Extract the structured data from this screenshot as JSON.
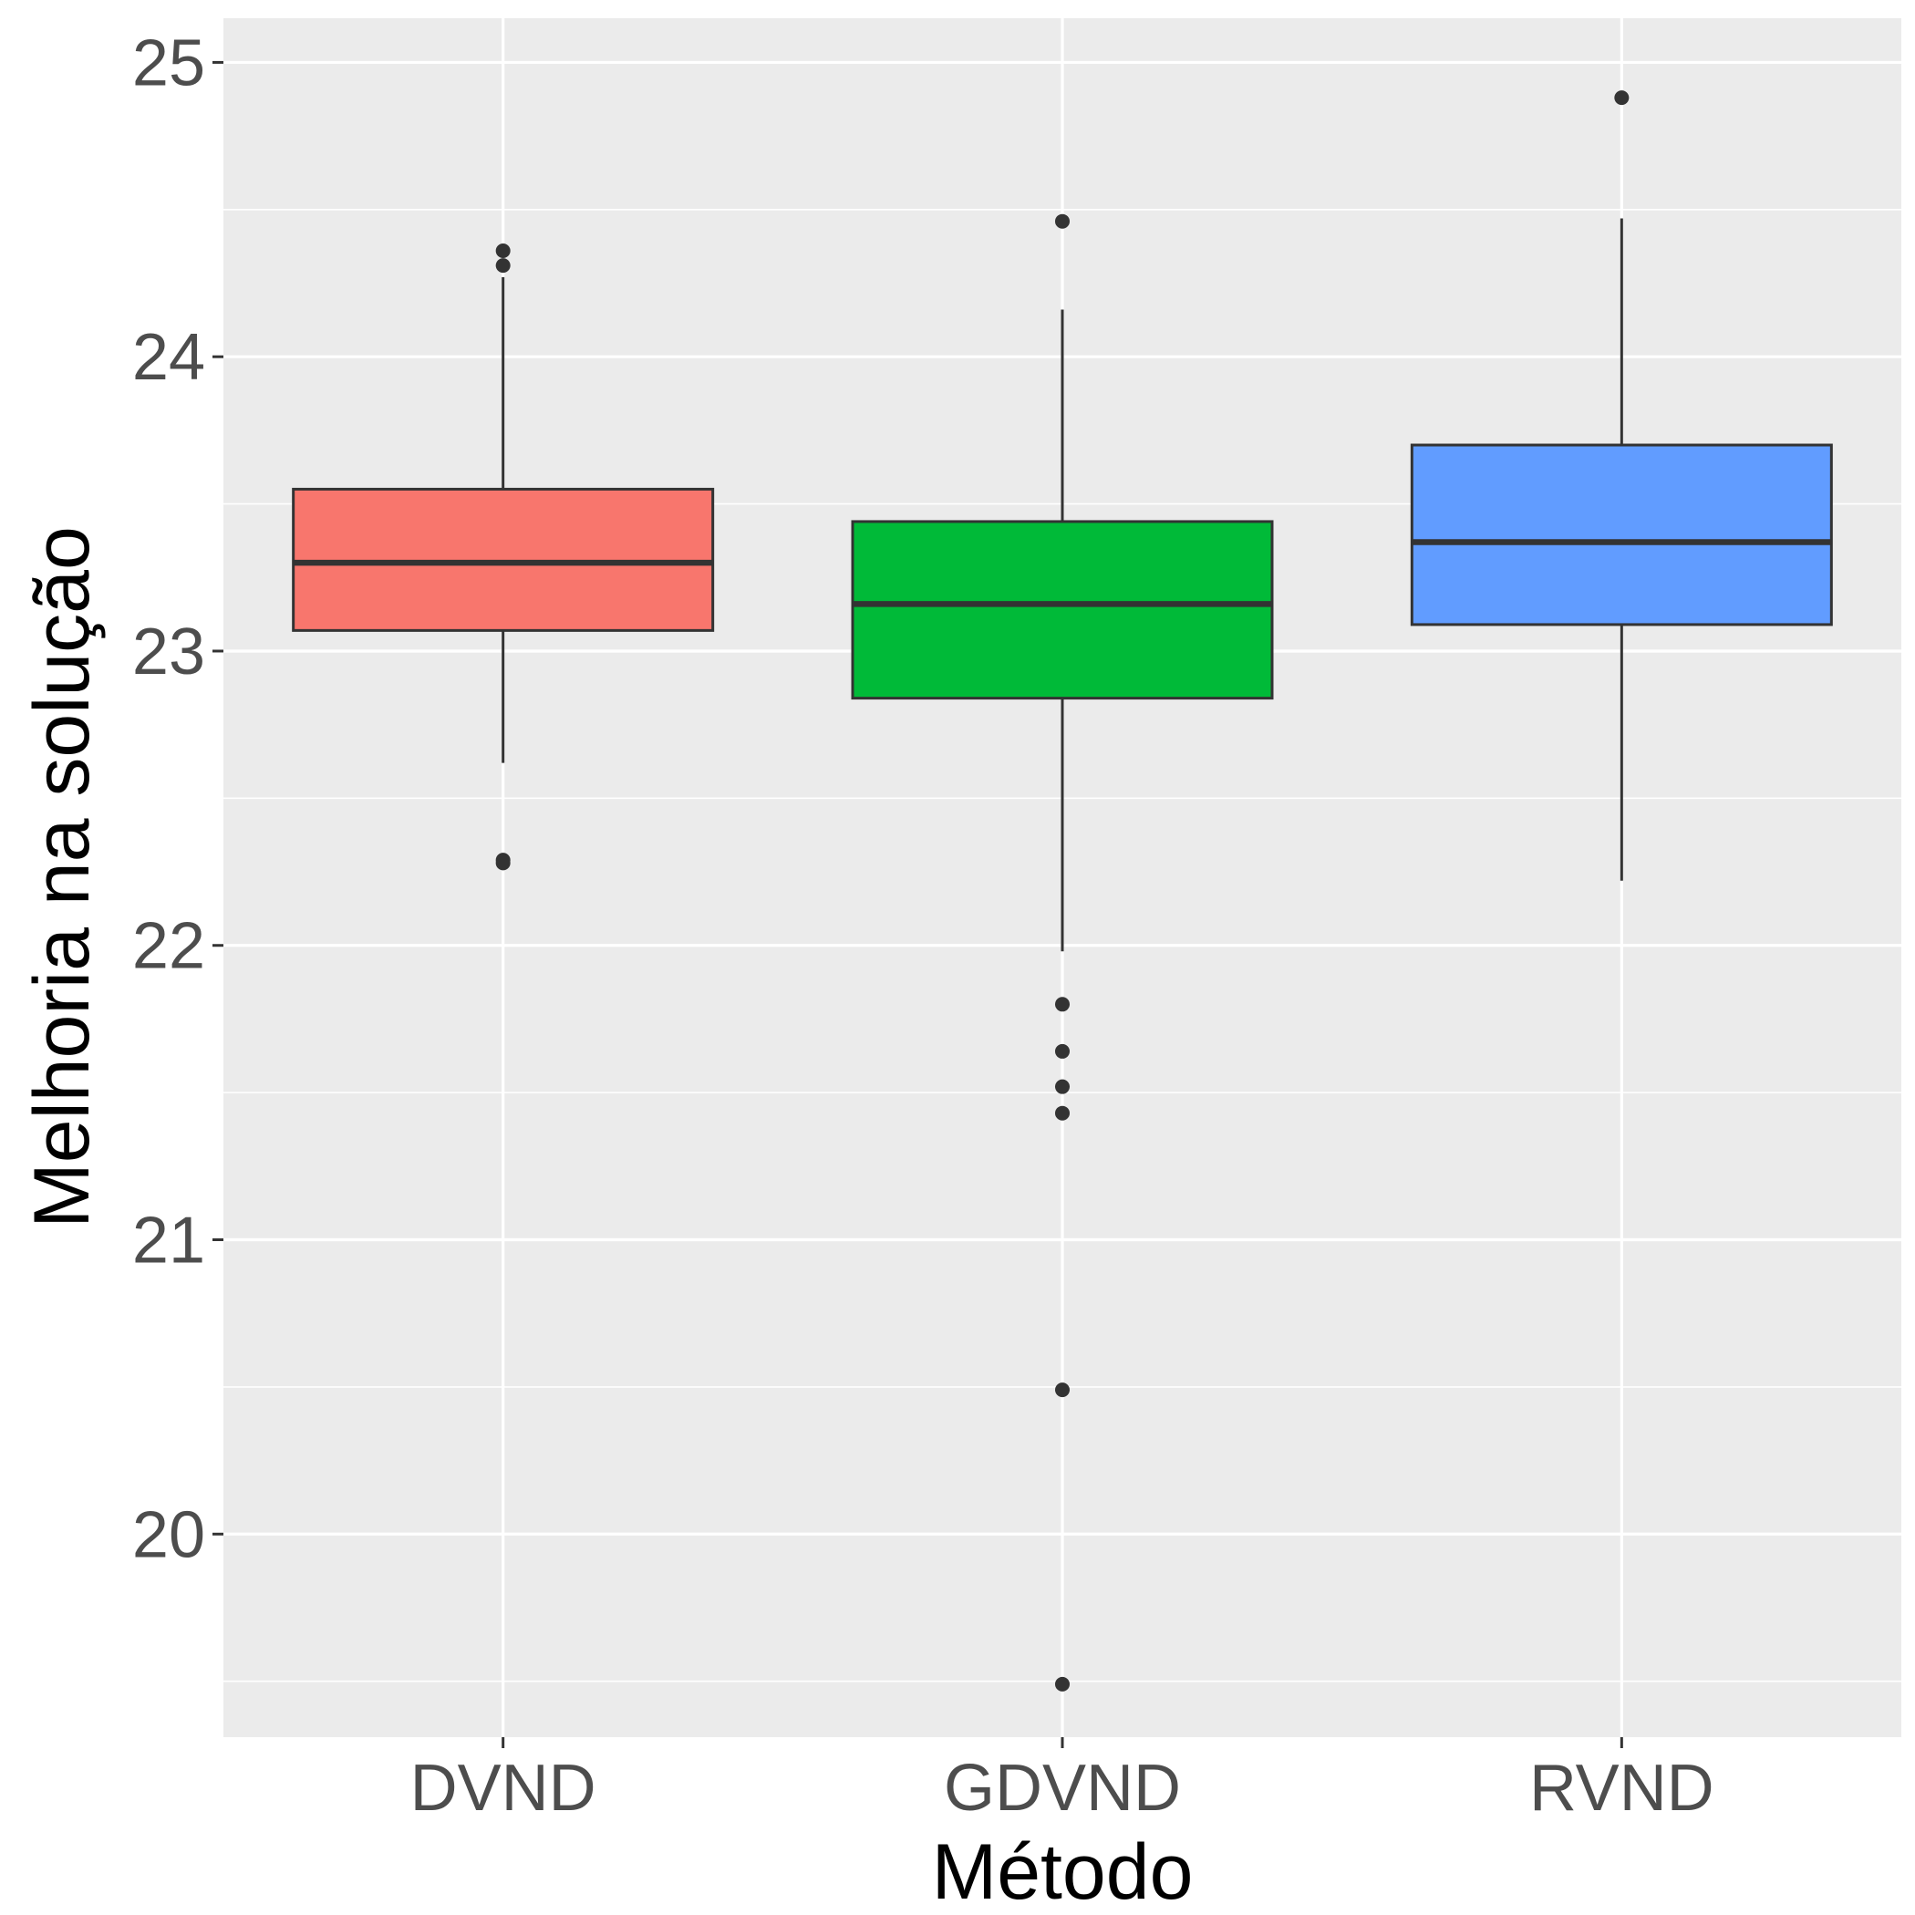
{
  "chart_data": {
    "type": "boxplot",
    "title": "",
    "xlabel": "Método",
    "ylabel": "Melhoria na solução",
    "ylim": [
      19.31,
      25.15
    ],
    "y_ticks": [
      20,
      21,
      22,
      23,
      24,
      25
    ],
    "y_tick_labels": [
      "20",
      "21",
      "22",
      "23",
      "24",
      "25"
    ],
    "y_minor_ticks": [
      19.5,
      20.5,
      21.5,
      22.5,
      23.5,
      24.5
    ],
    "grid": true,
    "legend": "none",
    "categories": [
      "DVND",
      "GDVND",
      "RVND"
    ],
    "series": [
      {
        "category": "DVND",
        "color": "#F8766D",
        "whisker_low": 22.62,
        "q1": 23.07,
        "median": 23.3,
        "q3": 23.55,
        "whisker_high": 24.27,
        "outliers": [
          24.36,
          24.31,
          22.29,
          22.28
        ]
      },
      {
        "category": "GDVND",
        "color": "#00BA38",
        "whisker_low": 21.98,
        "q1": 22.84,
        "median": 23.16,
        "q3": 23.44,
        "whisker_high": 24.16,
        "outliers": [
          24.46,
          21.8,
          21.64,
          21.52,
          21.43,
          20.49,
          19.49
        ]
      },
      {
        "category": "RVND",
        "color": "#619CFF",
        "whisker_low": 22.22,
        "q1": 23.09,
        "median": 23.37,
        "q3": 23.7,
        "whisker_high": 24.47,
        "outliers": [
          24.88
        ]
      }
    ]
  }
}
